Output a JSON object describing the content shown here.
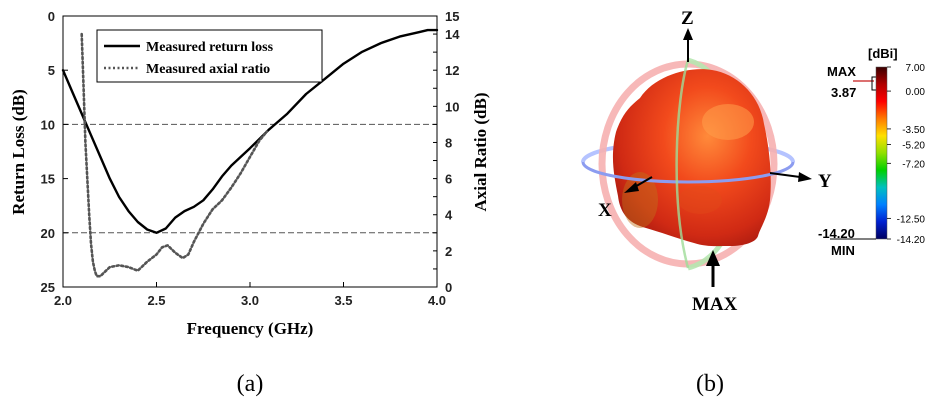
{
  "chart_data": {
    "type": "line",
    "xlabel": "Frequency  (GHz)",
    "ylabel": "Return Loss (dB)",
    "y2label": "Axial Ratio (dB)",
    "xlim": [
      2.0,
      4.0
    ],
    "ylim": [
      0,
      25
    ],
    "y_inverted": true,
    "y2lim": [
      0,
      15
    ],
    "x_ticks": [
      "2.0",
      "2.5",
      "3.0",
      "3.5",
      "4.0"
    ],
    "y_ticks": [
      "0",
      "5",
      "10",
      "15",
      "20",
      "25"
    ],
    "y2_ticks": [
      "0",
      "2",
      "4",
      "6",
      "8",
      "10",
      "12",
      "14"
    ],
    "ref_lines_y": [
      10,
      20
    ],
    "legend_position": "top-left",
    "series": [
      {
        "name": "Measured return loss",
        "axis": "left",
        "style": "solid",
        "color": "#000000",
        "x": [
          2.0,
          2.05,
          2.1,
          2.15,
          2.2,
          2.25,
          2.3,
          2.35,
          2.4,
          2.45,
          2.5,
          2.55,
          2.6,
          2.65,
          2.7,
          2.75,
          2.8,
          2.85,
          2.9,
          2.95,
          3.0,
          3.1,
          3.2,
          3.3,
          3.4,
          3.5,
          3.6,
          3.7,
          3.8,
          3.9,
          3.95,
          4.0
        ],
        "values": [
          5.0,
          7.0,
          9.0,
          11.0,
          13.0,
          15.0,
          16.7,
          18.0,
          19.0,
          19.7,
          20.0,
          19.6,
          18.6,
          18.0,
          17.6,
          17.0,
          16.0,
          14.8,
          13.8,
          13.0,
          12.2,
          10.5,
          9.0,
          7.2,
          5.8,
          4.4,
          3.3,
          2.5,
          1.9,
          1.5,
          1.3,
          1.3
        ]
      },
      {
        "name": "Measured axial ratio",
        "axis": "right",
        "style": "dotted",
        "color": "#555555",
        "x": [
          2.1,
          2.11,
          2.12,
          2.13,
          2.14,
          2.15,
          2.16,
          2.17,
          2.18,
          2.2,
          2.22,
          2.25,
          2.3,
          2.35,
          2.4,
          2.45,
          2.5,
          2.53,
          2.56,
          2.6,
          2.64,
          2.67,
          2.7,
          2.75,
          2.8,
          2.85,
          2.9,
          2.95,
          3.0,
          3.05,
          3.09
        ],
        "values": [
          14.0,
          11.0,
          8.0,
          6.0,
          4.0,
          2.4,
          1.4,
          0.9,
          0.6,
          0.6,
          0.8,
          1.1,
          1.2,
          1.1,
          0.9,
          1.4,
          1.8,
          2.2,
          2.3,
          1.9,
          1.6,
          1.8,
          2.5,
          3.5,
          4.3,
          4.8,
          5.5,
          6.3,
          7.2,
          8.1,
          8.6
        ]
      }
    ]
  },
  "captions": {
    "left": "(a)",
    "right": "(b)"
  },
  "pattern": {
    "axis_z": "Z",
    "axis_x": "X",
    "axis_y": "Y",
    "max_arrow_label": "MAX",
    "colorbar": {
      "unit": "[dBi]",
      "max_label": "MAX",
      "max_value": "3.87",
      "min_value": "-14.20",
      "min_label": "MIN",
      "ticks": [
        "7.00",
        "0.00",
        "-3.50",
        "-5.20",
        "-7.20",
        "-12.50",
        "-14.20"
      ],
      "colors": [
        "#3a0000",
        "#b00000",
        "#ff0000",
        "#ff7a00",
        "#ffe000",
        "#90e000",
        "#00d000",
        "#00c0c0",
        "#0080ff",
        "#0020d0",
        "#000060"
      ]
    }
  }
}
